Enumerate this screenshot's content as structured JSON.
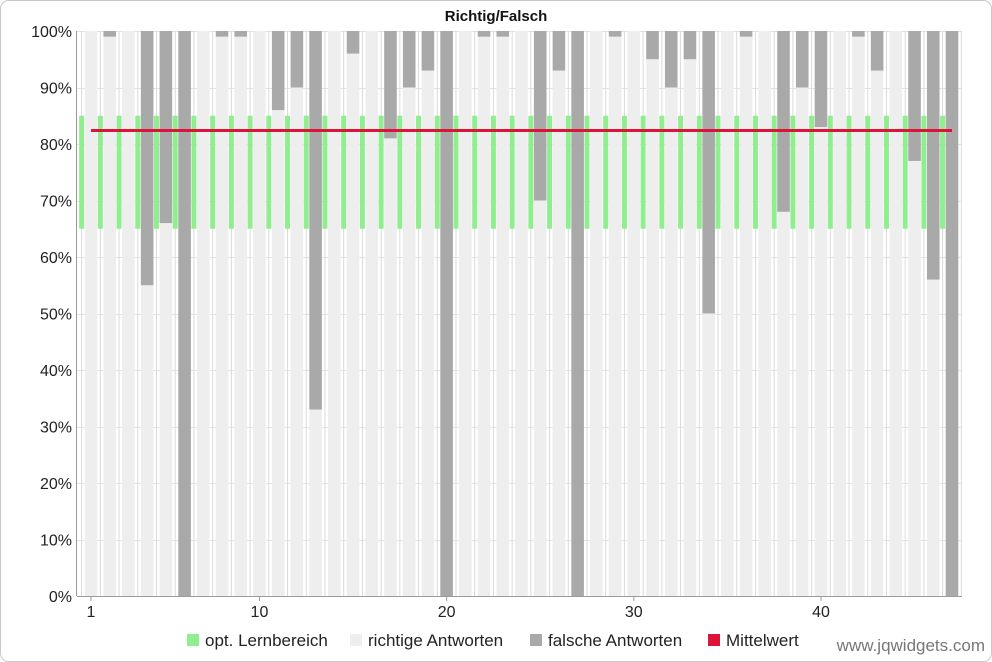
{
  "chart_data": {
    "type": "bar",
    "stacked": true,
    "title": "Richtig/Falsch",
    "x": [
      1,
      2,
      3,
      4,
      5,
      6,
      7,
      8,
      9,
      10,
      11,
      12,
      13,
      14,
      15,
      16,
      17,
      18,
      19,
      20,
      21,
      22,
      23,
      24,
      25,
      26,
      27,
      28,
      29,
      30,
      31,
      32,
      33,
      34,
      35,
      36,
      37,
      38,
      39,
      40,
      41,
      42,
      43,
      44,
      45,
      46,
      47
    ],
    "x_ticks": [
      1,
      10,
      20,
      30,
      40
    ],
    "ylim": [
      0,
      100
    ],
    "y_ticks": [
      {
        "value": 0,
        "label": "0%"
      },
      {
        "value": 10,
        "label": "10%"
      },
      {
        "value": 20,
        "label": "20%"
      },
      {
        "value": 30,
        "label": "30%"
      },
      {
        "value": 40,
        "label": "40%"
      },
      {
        "value": 50,
        "label": "50%"
      },
      {
        "value": 60,
        "label": "60%"
      },
      {
        "value": 70,
        "label": "70%"
      },
      {
        "value": 80,
        "label": "80%"
      },
      {
        "value": 90,
        "label": "90%"
      },
      {
        "value": 100,
        "label": "100%"
      }
    ],
    "series": [
      {
        "name": "opt. Lernbereich",
        "low": 65,
        "high": 85,
        "color": "#90EE90"
      },
      {
        "name": "richtige Antworten",
        "color": "#EEEEEE",
        "values": [
          100,
          99,
          100,
          55,
          66,
          0,
          100,
          99,
          99,
          100,
          86,
          90,
          33,
          100,
          96,
          100,
          81,
          90,
          93,
          0,
          100,
          99,
          99,
          100,
          70,
          93,
          0,
          100,
          99,
          100,
          95,
          90,
          95,
          50,
          100,
          99,
          100,
          68,
          90,
          83,
          100,
          99,
          93,
          100,
          77,
          56,
          0
        ]
      },
      {
        "name": "falsche Antworten",
        "color": "#A9A9A9",
        "values": [
          0,
          1,
          0,
          45,
          34,
          100,
          0,
          1,
          1,
          0,
          14,
          10,
          67,
          0,
          4,
          0,
          19,
          10,
          7,
          100,
          0,
          1,
          1,
          0,
          30,
          7,
          100,
          0,
          1,
          0,
          5,
          10,
          5,
          50,
          0,
          1,
          0,
          32,
          10,
          17,
          0,
          1,
          7,
          0,
          23,
          44,
          100
        ]
      },
      {
        "name": "Mittelwert",
        "value": 82.4,
        "color": "#DC143C"
      }
    ],
    "grid": true,
    "legend_position": "bottom"
  },
  "watermark": "www.jqwidgets.com"
}
